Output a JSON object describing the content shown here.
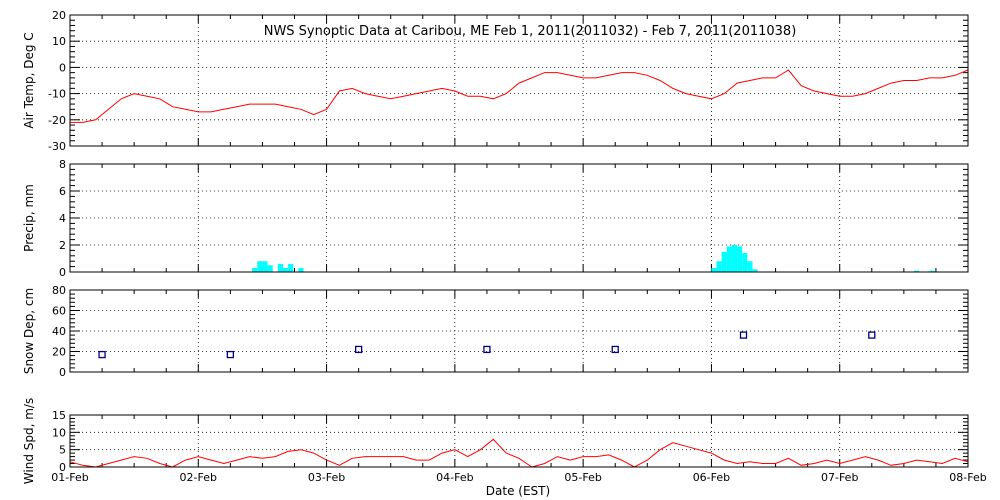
{
  "title": "NWS Synoptic Data at Caribou, ME   Feb  1, 2011(2011032) - Feb  7, 2011(2011038)",
  "x_axis": {
    "label": "Date (EST)",
    "tick_labels": [
      "01-Feb",
      "02-Feb",
      "03-Feb",
      "04-Feb",
      "05-Feb",
      "06-Feb",
      "07-Feb",
      "08-Feb"
    ],
    "range_days": [
      0,
      7
    ]
  },
  "colors": {
    "line": "#ff0000",
    "precip": "#00ffff",
    "snow": "#000080",
    "axis": "#000000",
    "grid": "#000000"
  },
  "chart_data": [
    {
      "type": "line",
      "ylabel": "Air Temp, Deg C",
      "ylim": [
        -30,
        20
      ],
      "yticks": [
        "20",
        "10",
        "0",
        "-10",
        "-20",
        "-30"
      ],
      "grid": true,
      "series": [
        {
          "x": [
            0,
            0.1,
            0.2,
            0.3,
            0.4,
            0.5,
            0.6,
            0.7,
            0.8,
            0.9,
            1.0,
            1.1,
            1.2,
            1.3,
            1.4,
            1.5,
            1.6,
            1.7,
            1.8,
            1.9,
            2.0,
            2.1,
            2.2,
            2.3,
            2.4,
            2.5,
            2.6,
            2.7,
            2.8,
            2.9,
            3.0,
            3.1,
            3.2,
            3.3,
            3.4,
            3.5,
            3.6,
            3.7,
            3.8,
            3.9,
            4.0,
            4.1,
            4.2,
            4.3,
            4.4,
            4.5,
            4.6,
            4.7,
            4.8,
            4.9,
            5.0,
            5.1,
            5.2,
            5.3,
            5.4,
            5.5,
            5.6,
            5.7,
            5.8,
            5.9,
            6.0,
            6.1,
            6.2,
            6.3,
            6.4,
            6.5,
            6.6,
            6.7,
            6.8,
            6.9,
            7.0
          ],
          "values": [
            -21,
            -21,
            -20,
            -16,
            -12,
            -10,
            -11,
            -12,
            -15,
            -16,
            -17,
            -17,
            -16,
            -15,
            -14,
            -14,
            -14,
            -15,
            -16,
            -18,
            -16,
            -9,
            -8,
            -10,
            -11,
            -12,
            -11,
            -10,
            -9,
            -8,
            -9,
            -11,
            -11,
            -12,
            -10,
            -6,
            -4,
            -2,
            -2,
            -3,
            -4,
            -4,
            -3,
            -2,
            -2,
            -3,
            -5,
            -8,
            -10,
            -11,
            -12,
            -10,
            -6,
            -5,
            -4,
            -4,
            -1,
            -7,
            -9,
            -10,
            -11,
            -11,
            -10,
            -8,
            -6,
            -5,
            -5,
            -4,
            -4,
            -3,
            -1
          ]
        }
      ]
    },
    {
      "type": "bar",
      "ylabel": "Precip, mm",
      "ylim": [
        0,
        8
      ],
      "yticks": [
        "8",
        "6",
        "4",
        "2",
        "0"
      ],
      "grid": true,
      "series": [
        {
          "x": [
            1.42,
            1.46,
            1.5,
            1.54,
            1.58,
            1.62,
            1.66,
            1.7,
            1.74,
            1.78,
            5.0,
            5.04,
            5.08,
            5.12,
            5.16,
            5.2,
            5.24,
            5.28,
            5.32,
            6.58,
            6.7
          ],
          "values": [
            0.3,
            0.8,
            0.8,
            0.5,
            0.0,
            0.6,
            0.3,
            0.6,
            0.0,
            0.3,
            0.3,
            0.8,
            1.5,
            1.9,
            2.0,
            1.9,
            1.4,
            0.8,
            0.2,
            0.1,
            0.1
          ]
        }
      ]
    },
    {
      "type": "scatter",
      "ylabel": "Snow Dep, cm",
      "ylim": [
        0,
        80
      ],
      "yticks": [
        "80",
        "60",
        "40",
        "20",
        "0"
      ],
      "grid": true,
      "series": [
        {
          "x": [
            0.25,
            1.25,
            2.25,
            3.25,
            4.25,
            5.25,
            6.25
          ],
          "values": [
            17,
            17,
            22,
            22,
            22,
            36,
            36
          ]
        }
      ]
    },
    {
      "type": "line",
      "ylabel": "Wind Spd, m/s",
      "ylim": [
        0,
        15
      ],
      "yticks": [
        "15",
        "10",
        "5",
        "0"
      ],
      "grid": true,
      "series": [
        {
          "x": [
            0,
            0.1,
            0.2,
            0.3,
            0.4,
            0.5,
            0.6,
            0.7,
            0.8,
            0.9,
            1.0,
            1.1,
            1.2,
            1.3,
            1.4,
            1.5,
            1.6,
            1.7,
            1.8,
            1.9,
            2.0,
            2.1,
            2.2,
            2.3,
            2.4,
            2.5,
            2.6,
            2.7,
            2.8,
            2.9,
            3.0,
            3.1,
            3.2,
            3.3,
            3.4,
            3.5,
            3.6,
            3.7,
            3.8,
            3.9,
            4.0,
            4.1,
            4.2,
            4.3,
            4.4,
            4.5,
            4.6,
            4.7,
            4.8,
            4.9,
            5.0,
            5.1,
            5.2,
            5.3,
            5.4,
            5.5,
            5.6,
            5.7,
            5.8,
            5.9,
            6.0,
            6.1,
            6.2,
            6.3,
            6.4,
            6.5,
            6.6,
            6.7,
            6.8,
            6.9,
            7.0
          ],
          "values": [
            1.5,
            0.5,
            0,
            1,
            2,
            3,
            2.5,
            1,
            0,
            2,
            3,
            2,
            1,
            2,
            3,
            2.5,
            3,
            4.5,
            5,
            4,
            2,
            0.5,
            2.5,
            3,
            3,
            3,
            3,
            2,
            2,
            4,
            5,
            3,
            5,
            8,
            4,
            2.5,
            0,
            1,
            3,
            2,
            3,
            3,
            3.5,
            2,
            0,
            2,
            5,
            7,
            6,
            5,
            4,
            2,
            1,
            1.5,
            1,
            1,
            2.5,
            0.5,
            1,
            2,
            1,
            2,
            3,
            2,
            0.5,
            1,
            2,
            1.5,
            1,
            2.5,
            1.5
          ]
        }
      ]
    }
  ]
}
